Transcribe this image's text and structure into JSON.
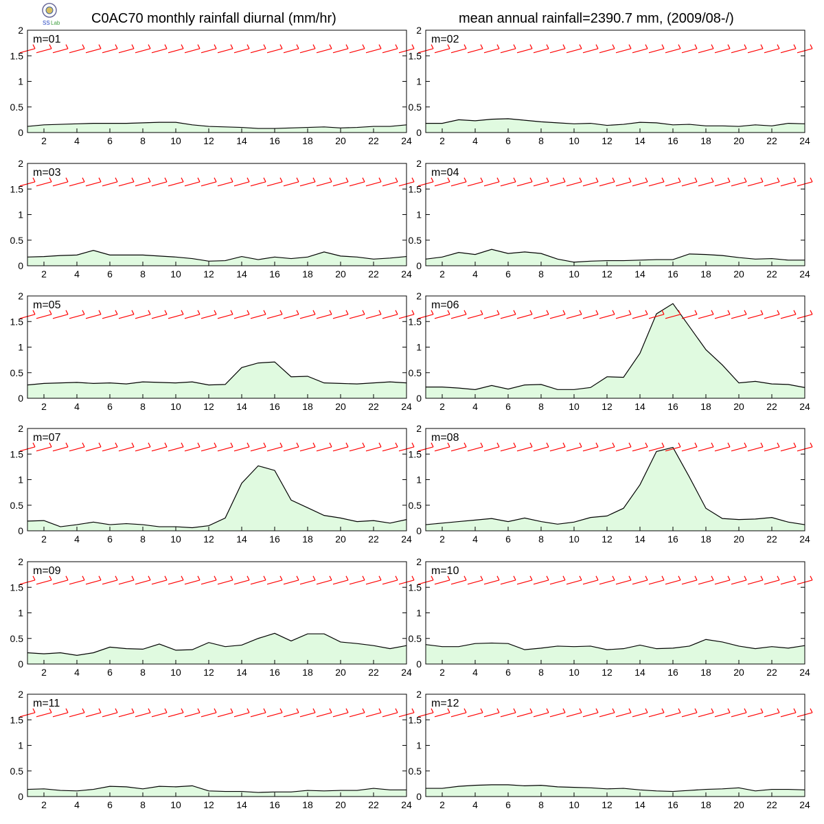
{
  "header": {
    "title_left": "C0AC70 monthly rainfall diurnal (mm/hr)",
    "title_right": "mean annual rainfall=2390.7 mm, (2009/08-/)",
    "logo_icon": "lab-logo-icon"
  },
  "colors": {
    "fill": "#e0fae0",
    "line": "#000000",
    "wind_barb": "#ff0000",
    "frame": "#000000"
  },
  "chart_data": {
    "type": "area",
    "x": [
      1,
      2,
      3,
      4,
      5,
      6,
      7,
      8,
      9,
      10,
      11,
      12,
      13,
      14,
      15,
      16,
      17,
      18,
      19,
      20,
      21,
      22,
      23,
      24
    ],
    "x_ticks": [
      2,
      4,
      6,
      8,
      10,
      12,
      14,
      16,
      18,
      20,
      22,
      24
    ],
    "x_tick_labels": [
      "2",
      "4",
      "6",
      "8",
      "10",
      "12",
      "14",
      "16",
      "18",
      "20",
      "22",
      "24"
    ],
    "xlim": [
      1,
      24
    ],
    "ylim": [
      0,
      2
    ],
    "y_ticks": [
      0,
      0.5,
      1,
      1.5,
      2
    ],
    "y_tick_labels": [
      "0",
      "0.5",
      "1",
      "1.5",
      "2"
    ],
    "wind_barb_row": 1.6,
    "panels": [
      {
        "label": "m=01",
        "values": [
          0.12,
          0.15,
          0.16,
          0.17,
          0.18,
          0.18,
          0.18,
          0.19,
          0.2,
          0.2,
          0.15,
          0.12,
          0.11,
          0.1,
          0.08,
          0.08,
          0.09,
          0.1,
          0.11,
          0.09,
          0.1,
          0.12,
          0.12,
          0.15
        ]
      },
      {
        "label": "m=02",
        "values": [
          0.18,
          0.18,
          0.25,
          0.23,
          0.26,
          0.27,
          0.24,
          0.21,
          0.19,
          0.17,
          0.18,
          0.14,
          0.16,
          0.2,
          0.19,
          0.15,
          0.16,
          0.13,
          0.13,
          0.12,
          0.15,
          0.13,
          0.18,
          0.17
        ]
      },
      {
        "label": "m=03",
        "values": [
          0.17,
          0.18,
          0.2,
          0.21,
          0.3,
          0.21,
          0.21,
          0.21,
          0.19,
          0.17,
          0.14,
          0.09,
          0.1,
          0.18,
          0.12,
          0.17,
          0.14,
          0.17,
          0.27,
          0.19,
          0.17,
          0.13,
          0.15,
          0.18
        ]
      },
      {
        "label": "m=04",
        "values": [
          0.13,
          0.17,
          0.26,
          0.22,
          0.32,
          0.24,
          0.27,
          0.24,
          0.13,
          0.07,
          0.09,
          0.1,
          0.1,
          0.11,
          0.12,
          0.12,
          0.23,
          0.22,
          0.2,
          0.16,
          0.13,
          0.14,
          0.11,
          0.11
        ]
      },
      {
        "label": "m=05",
        "values": [
          0.26,
          0.29,
          0.3,
          0.31,
          0.29,
          0.3,
          0.28,
          0.32,
          0.31,
          0.3,
          0.32,
          0.26,
          0.27,
          0.6,
          0.69,
          0.71,
          0.42,
          0.43,
          0.3,
          0.29,
          0.28,
          0.3,
          0.32,
          0.3
        ]
      },
      {
        "label": "m=06",
        "values": [
          0.22,
          0.22,
          0.2,
          0.17,
          0.25,
          0.18,
          0.26,
          0.27,
          0.17,
          0.17,
          0.21,
          0.42,
          0.41,
          0.88,
          1.65,
          1.85,
          1.4,
          0.95,
          0.65,
          0.3,
          0.33,
          0.28,
          0.27,
          0.21
        ]
      },
      {
        "label": "m=07",
        "values": [
          0.19,
          0.2,
          0.08,
          0.12,
          0.17,
          0.12,
          0.14,
          0.12,
          0.08,
          0.08,
          0.06,
          0.1,
          0.25,
          0.93,
          1.27,
          1.18,
          0.6,
          0.45,
          0.3,
          0.25,
          0.18,
          0.2,
          0.15,
          0.22
        ]
      },
      {
        "label": "m=08",
        "values": [
          0.12,
          0.15,
          0.18,
          0.21,
          0.24,
          0.18,
          0.25,
          0.18,
          0.13,
          0.17,
          0.26,
          0.29,
          0.44,
          0.9,
          1.55,
          1.63,
          1.05,
          0.44,
          0.24,
          0.22,
          0.23,
          0.26,
          0.17,
          0.12
        ]
      },
      {
        "label": "m=09",
        "values": [
          0.22,
          0.2,
          0.22,
          0.17,
          0.22,
          0.33,
          0.3,
          0.29,
          0.39,
          0.27,
          0.28,
          0.42,
          0.34,
          0.37,
          0.5,
          0.6,
          0.45,
          0.59,
          0.59,
          0.43,
          0.4,
          0.36,
          0.3,
          0.36
        ]
      },
      {
        "label": "m=10",
        "values": [
          0.38,
          0.34,
          0.34,
          0.4,
          0.41,
          0.4,
          0.28,
          0.31,
          0.35,
          0.34,
          0.35,
          0.28,
          0.3,
          0.37,
          0.3,
          0.31,
          0.35,
          0.48,
          0.43,
          0.35,
          0.3,
          0.34,
          0.31,
          0.36
        ]
      },
      {
        "label": "m=11",
        "values": [
          0.14,
          0.15,
          0.12,
          0.11,
          0.14,
          0.2,
          0.19,
          0.15,
          0.2,
          0.19,
          0.21,
          0.11,
          0.1,
          0.1,
          0.08,
          0.09,
          0.09,
          0.12,
          0.11,
          0.12,
          0.12,
          0.16,
          0.13,
          0.13
        ]
      },
      {
        "label": "m=12",
        "values": [
          0.16,
          0.16,
          0.2,
          0.22,
          0.23,
          0.23,
          0.21,
          0.22,
          0.19,
          0.18,
          0.17,
          0.15,
          0.16,
          0.13,
          0.11,
          0.1,
          0.12,
          0.14,
          0.15,
          0.17,
          0.11,
          0.14,
          0.14,
          0.13
        ]
      }
    ],
    "wind_barbs_note": "red barb glyphs at y≈1.6 for each hour; mostly steady, with tilted barbs in afternoon hours of m=06, m=07, m=08"
  }
}
